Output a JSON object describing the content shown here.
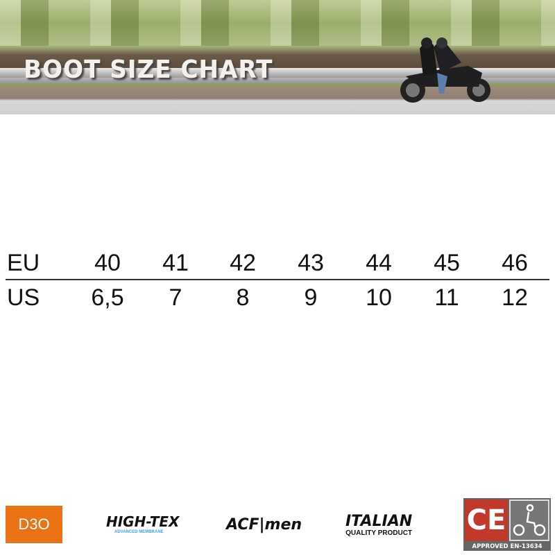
{
  "banner": {
    "title": "BOOT SIZE CHART"
  },
  "size_table": {
    "rows": [
      {
        "label": "EU",
        "values": [
          "40",
          "41",
          "42",
          "43",
          "44",
          "45",
          "46"
        ]
      },
      {
        "label": "US",
        "values": [
          "6,5",
          "7",
          "8",
          "9",
          "10",
          "11",
          "12"
        ]
      }
    ]
  },
  "logos": {
    "d3o": "D3O",
    "hightex": {
      "name": "HIGH-TEX",
      "tagline": "ADVANCED MEMBRANE"
    },
    "acf": "ACF|men",
    "italian": {
      "name": "ITALIAN",
      "tagline": "QUALITY PRODUCT"
    },
    "ce": {
      "mark": "CE",
      "text": "APPROVED EN-13634"
    }
  },
  "colors": {
    "d3o": "#ec7216",
    "ce_red": "#c0392b",
    "hightex_blue": "#35a3e0"
  }
}
